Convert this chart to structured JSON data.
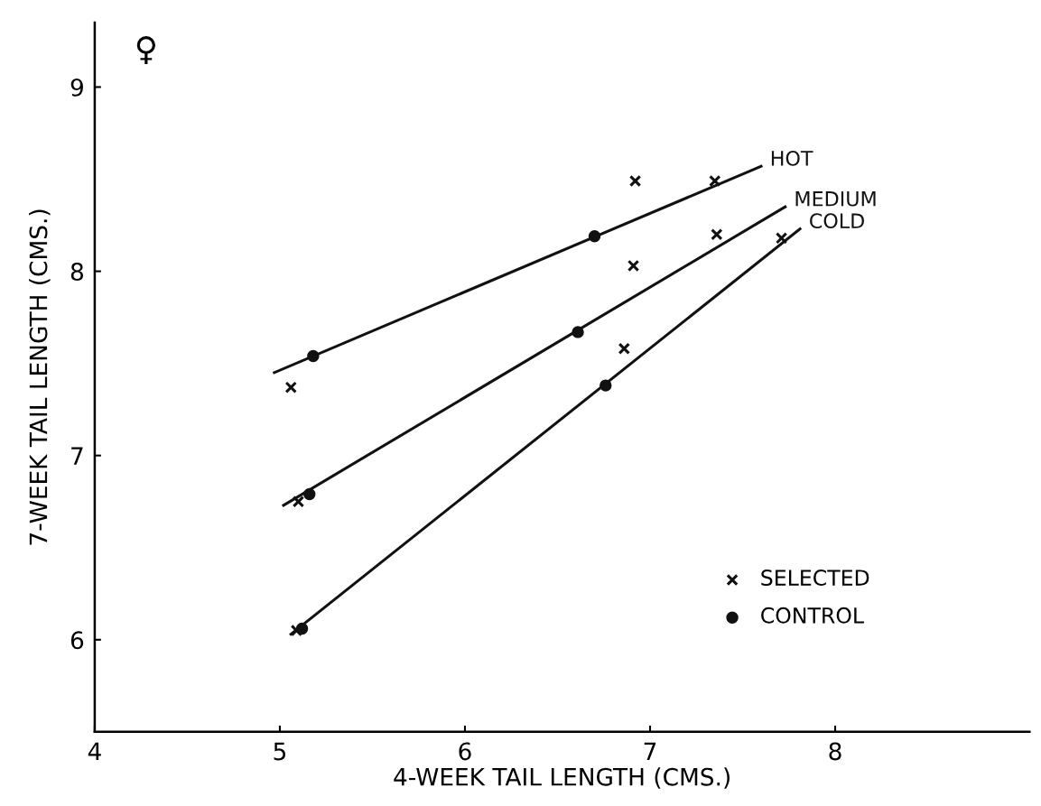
{
  "chart_data": {
    "type": "scatter",
    "xlabel": "4-WEEK TAIL LENGTH (CMS.)",
    "ylabel": "7-WEEK TAIL LENGTH (CMS.)",
    "xlim": [
      4,
      9.05
    ],
    "ylim": [
      5.5,
      9.35
    ],
    "xticks": [
      4,
      5,
      6,
      7,
      8
    ],
    "yticks": [
      6,
      7,
      8,
      9
    ],
    "grid": false,
    "legend": "bottom right",
    "annotations": [
      "♀"
    ],
    "series": [
      {
        "name": "HOT",
        "type": "line",
        "color": "#111111",
        "marker": "none",
        "line_style": "solid",
        "x": [
          4.97,
          7.6
        ],
        "values": [
          7.45,
          8.57
        ]
      },
      {
        "name": "MEDIUM",
        "type": "line",
        "color": "#111111",
        "marker": "none",
        "line_style": "solid",
        "x": [
          5.02,
          7.73
        ],
        "values": [
          6.73,
          8.35
        ]
      },
      {
        "name": "COLD",
        "type": "line",
        "color": "#111111",
        "marker": "none",
        "line_style": "solid",
        "x": [
          5.06,
          7.81
        ],
        "values": [
          6.03,
          8.23
        ]
      },
      {
        "name": "SELECTED",
        "color": "#111111",
        "marker": "cross",
        "x": [
          5.06,
          5.1,
          5.09,
          6.92,
          7.35,
          6.91,
          7.36,
          6.86,
          7.71
        ],
        "values": [
          7.37,
          6.75,
          6.05,
          8.49,
          8.49,
          8.03,
          8.2,
          7.58,
          8.18
        ]
      },
      {
        "name": "CONTROL",
        "color": "#111111",
        "marker": "circle",
        "x": [
          5.18,
          6.7,
          5.16,
          6.61,
          5.12,
          6.76
        ],
        "values": [
          7.54,
          8.19,
          6.79,
          7.67,
          6.06,
          7.38
        ]
      }
    ]
  }
}
